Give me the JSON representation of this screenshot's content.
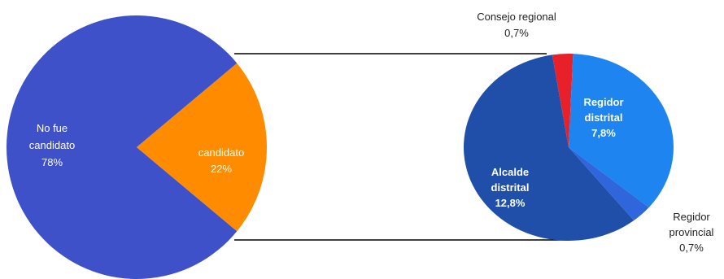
{
  "chart_data": [
    {
      "type": "pie",
      "slices": [
        {
          "label_lines": [
            "No fue",
            "candidato"
          ],
          "value_text": "78%",
          "value": 78,
          "color": "#3f51c8"
        },
        {
          "label_lines": [
            "candidato"
          ],
          "value_text": "22%",
          "value": 22,
          "color": "#ff8c00"
        }
      ]
    },
    {
      "type": "pie",
      "slices": [
        {
          "label_lines": [
            "Consejo regional"
          ],
          "value_text": "0,7%",
          "value": 0.7,
          "color": "#e8202a"
        },
        {
          "label_lines": [
            "Regidor",
            "distrital"
          ],
          "value_text": "7,8%",
          "value": 7.8,
          "color": "#1e84f0"
        },
        {
          "label_lines": [
            "Regidor",
            "provincial"
          ],
          "value_text": "0,7%",
          "value": 0.7,
          "color": "#2f66dc"
        },
        {
          "label_lines": [
            "Alcalde",
            "distrital"
          ],
          "value_text": "12,8%",
          "value": 12.8,
          "color": "#1f4fa8"
        }
      ]
    }
  ]
}
